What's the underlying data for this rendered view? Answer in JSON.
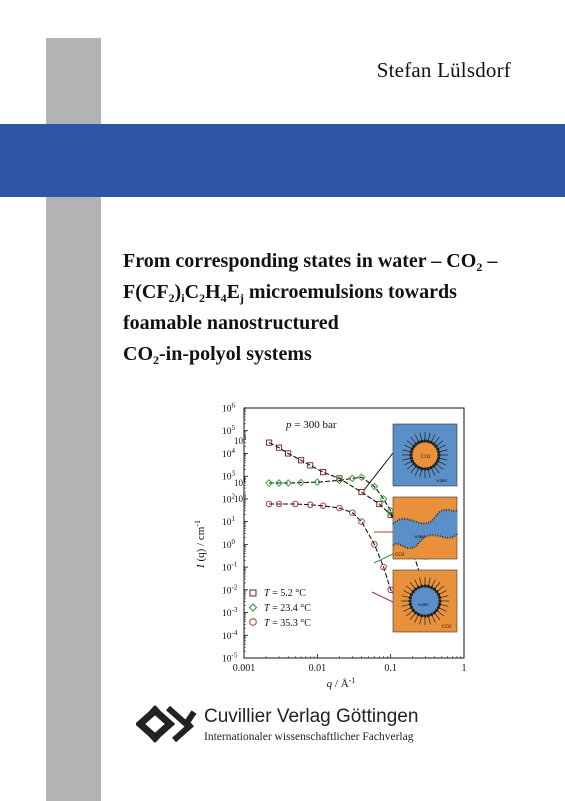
{
  "author": "Stefan Lülsdorf",
  "title": {
    "line1": {
      "a": "From corresponding states in water – CO",
      "sub": "2",
      "b": " –"
    },
    "line2": {
      "p1": "F(CF",
      "s1": "2",
      "p2": ")",
      "s2": "i",
      "p3": "C",
      "s3": "2",
      "p4": "H",
      "s4": "4",
      "p5": "E",
      "s5": "j",
      "p6": " microemulsions towards"
    },
    "line3": "foamable nanostructured",
    "line4": {
      "a": "CO",
      "sub": "2",
      "b": "-in-polyol systems"
    }
  },
  "colors": {
    "band": "#2e56a6",
    "side_bar": "#b3b3b3",
    "square_series": "#6b1f1f",
    "diamond_series": "#2f9a2f",
    "circle_series": "#b03030",
    "panel_orange": "#e8913a",
    "panel_blue": "#5b8fc8"
  },
  "chart_data": {
    "type": "scatter",
    "xscale": "log",
    "yscale": "log",
    "xlim": [
      0.001,
      1
    ],
    "ylim": [
      1e-05,
      1000000
    ],
    "x_ticks": [
      "0.001",
      "0.01",
      "0.1",
      "1"
    ],
    "y_ticks": [
      "10^-5",
      "10^-4",
      "10^-3",
      "10^-2",
      "10^-1",
      "10^0",
      "10^1",
      "10^2",
      "10^3",
      "10^4",
      "10^5",
      "10^6"
    ],
    "annotation": "p = 300 bar",
    "scale_labels": [
      "10^3",
      "10^1",
      "10^0"
    ],
    "series": [
      {
        "name": "T = 5.2 °C",
        "marker": "square",
        "x": [
          0.0022,
          0.003,
          0.004,
          0.006,
          0.008,
          0.012,
          0.02,
          0.04,
          0.07,
          0.1,
          0.13,
          0.16,
          0.2,
          0.25,
          0.3
        ],
        "y": [
          30000,
          18000,
          10000,
          5000,
          3000,
          1500,
          800,
          200,
          60,
          20,
          5,
          3,
          1.5,
          1.0,
          0.3
        ]
      },
      {
        "name": "T = 23.4 °C",
        "marker": "diamond",
        "x": [
          0.0022,
          0.003,
          0.004,
          0.006,
          0.01,
          0.02,
          0.03,
          0.04,
          0.06,
          0.08,
          0.1,
          0.13,
          0.16,
          0.2,
          0.25
        ],
        "y": [
          500,
          500,
          500,
          520,
          550,
          650,
          800,
          900,
          350,
          100,
          30,
          2,
          1,
          0.5,
          0.05
        ]
      },
      {
        "name": "T = 35.3 °C",
        "marker": "circle",
        "x": [
          0.0022,
          0.003,
          0.005,
          0.008,
          0.012,
          0.02,
          0.03,
          0.04,
          0.06,
          0.08,
          0.1,
          0.13,
          0.16,
          0.2,
          0.25
        ],
        "y": [
          60,
          60,
          60,
          55,
          50,
          40,
          25,
          10,
          1,
          0.1,
          0.01,
          0.003,
          0.001,
          0.0005,
          0.0002
        ]
      }
    ],
    "ylabel": "I (q) / cm^-1",
    "xlabel": "q / Å^-1",
    "panel_labels": [
      "CO2",
      "water",
      "water",
      "CO2",
      "water",
      "CO2"
    ]
  },
  "figure": {
    "annotation_p": "p",
    "annotation_rest": " = 300 bar",
    "y_axis_label_i": "I",
    "y_axis_label_rest": " (q) / cm",
    "y_axis_label_exp": "-1",
    "x_axis_label_q": "q",
    "x_axis_label_rest": " / Å",
    "x_axis_label_exp": "-1",
    "legend": [
      {
        "t": "T",
        "rest": " = 5.2 °C"
      },
      {
        "t": "T",
        "rest": " = 23.4 °C"
      },
      {
        "t": "T",
        "rest": " = 35.3 °C"
      }
    ],
    "scale_3": "10",
    "scale_3_exp": "3",
    "scale_1": "10",
    "scale_1_exp": "1",
    "scale_0": "10",
    "scale_0_exp": "0"
  },
  "publisher": {
    "name": "Cuvillier Verlag Göttingen",
    "subtitle": "Internationaler wissenschaftlicher Fachverlag"
  }
}
